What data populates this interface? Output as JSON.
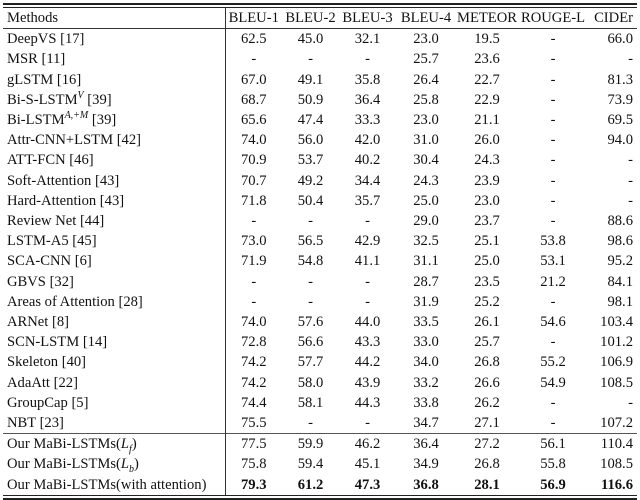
{
  "table": {
    "headers": [
      "Methods",
      "BLEU-1",
      "BLEU-2",
      "BLEU-3",
      "BLEU-4",
      "METEOR",
      "ROUGE-L",
      "CIDEr"
    ],
    "rows": [
      {
        "method": "DeepVS [17]",
        "values": [
          "62.5",
          "45.0",
          "32.1",
          "23.0",
          "19.5",
          "-",
          "66.0"
        ]
      },
      {
        "method": "MSR [11]",
        "values": [
          "-",
          "-",
          "-",
          "25.7",
          "23.6",
          "-",
          "-"
        ]
      },
      {
        "method": "gLSTM [16]",
        "values": [
          "67.0",
          "49.1",
          "35.8",
          "26.4",
          "22.7",
          "-",
          "81.3"
        ]
      },
      {
        "method": "Bi-S-LSTM",
        "sup": "V",
        "ref": " [39]",
        "values": [
          "68.7",
          "50.9",
          "36.4",
          "25.8",
          "22.9",
          "-",
          "73.9"
        ]
      },
      {
        "method": "Bi-LSTM",
        "sup": "A,+M",
        "ref": " [39]",
        "values": [
          "65.6",
          "47.4",
          "33.3",
          "23.0",
          "21.1",
          "-",
          "69.5"
        ]
      },
      {
        "method": "Attr-CNN+LSTM [42]",
        "values": [
          "74.0",
          "56.0",
          "42.0",
          "31.0",
          "26.0",
          "-",
          "94.0"
        ]
      },
      {
        "method": "ATT-FCN [46]",
        "values": [
          "70.9",
          "53.7",
          "40.2",
          "30.4",
          "24.3",
          "-",
          "-"
        ]
      },
      {
        "method": "Soft-Attention [43]",
        "values": [
          "70.7",
          "49.2",
          "34.4",
          "24.3",
          "23.9",
          "-",
          "-"
        ]
      },
      {
        "method": "Hard-Attention [43]",
        "values": [
          "71.8",
          "50.4",
          "35.7",
          "25.0",
          "23.0",
          "-",
          "-"
        ]
      },
      {
        "method": "Review Net [44]",
        "values": [
          "-",
          "-",
          "-",
          "29.0",
          "23.7",
          "-",
          "88.6"
        ]
      },
      {
        "method": "LSTM-A5 [45]",
        "values": [
          "73.0",
          "56.5",
          "42.9",
          "32.5",
          "25.1",
          "53.8",
          "98.6"
        ]
      },
      {
        "method": "SCA-CNN [6]",
        "values": [
          "71.9",
          "54.8",
          "41.1",
          "31.1",
          "25.0",
          "53.1",
          "95.2"
        ]
      },
      {
        "method": "GBVS [32]",
        "values": [
          "-",
          "-",
          "-",
          "28.7",
          "23.5",
          "21.2",
          "84.1"
        ]
      },
      {
        "method": "Areas of Attention [28]",
        "values": [
          "-",
          "-",
          "-",
          "31.9",
          "25.2",
          "-",
          "98.1"
        ]
      },
      {
        "method": "ARNet [8]",
        "values": [
          "74.0",
          "57.6",
          "44.0",
          "33.5",
          "26.1",
          "54.6",
          "103.4"
        ]
      },
      {
        "method": "SCN-LSTM [14]",
        "values": [
          "72.8",
          "56.6",
          "43.3",
          "33.0",
          "25.7",
          "-",
          "101.2"
        ]
      },
      {
        "method": "Skeleton [40]",
        "values": [
          "74.2",
          "57.7",
          "44.2",
          "34.0",
          "26.8",
          "55.2",
          "106.9"
        ]
      },
      {
        "method": "AdaAtt [22]",
        "values": [
          "74.2",
          "58.0",
          "43.9",
          "33.2",
          "26.6",
          "54.9",
          "108.5"
        ]
      },
      {
        "method": "GroupCap [5]",
        "values": [
          "74.4",
          "58.1",
          "44.3",
          "33.8",
          "26.2",
          "-",
          "-"
        ]
      },
      {
        "method": "NBT [23]",
        "values": [
          "75.5",
          "-",
          "-",
          "34.7",
          "27.1",
          "-",
          "107.2"
        ]
      }
    ],
    "ours": [
      {
        "method": "Our MaBi-LSTMs(",
        "sub_main": "L",
        "sub": "f",
        "tail": ")",
        "values": [
          "77.5",
          "59.9",
          "46.2",
          "36.4",
          "27.2",
          "56.1",
          "110.4"
        ]
      },
      {
        "method": "Our MaBi-LSTMs(",
        "sub_main": "L",
        "sub": "b",
        "tail": ")",
        "values": [
          "75.8",
          "59.4",
          "45.1",
          "34.9",
          "26.8",
          "55.8",
          "108.5"
        ]
      },
      {
        "method": "Our MaBi-LSTMs(with attention)",
        "values": [
          "79.3",
          "61.2",
          "47.3",
          "36.8",
          "28.1",
          "56.9",
          "116.6"
        ],
        "bold": true
      }
    ]
  }
}
